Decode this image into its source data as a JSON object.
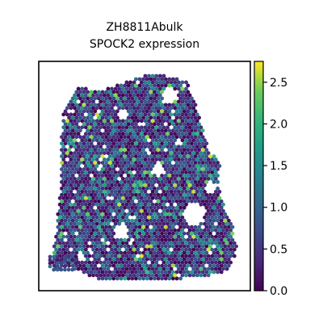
{
  "chart_data": {
    "type": "scatter",
    "title": "ZH8811Abulk",
    "subtitle": "SPOCK2 expression",
    "xlabel": "",
    "ylabel": "",
    "colormap": "viridis",
    "colorbar": {
      "min": 0.0,
      "max": 2.75,
      "ticks": [
        0.0,
        0.5,
        1.0,
        1.5,
        2.0,
        2.5
      ],
      "tick_labels": [
        "0.0",
        "0.5",
        "1.0",
        "1.5",
        "2.0",
        "2.5"
      ]
    },
    "axes_visible": false,
    "grid": false,
    "description_of_points": "Spatial transcriptomics spots; color encodes SPOCK2 expression (most spots near 0.0 to 1.0, scattered spots up to about 2.7)."
  },
  "colors": {
    "viridis_low": "#440154",
    "viridis_mid": "#21918c",
    "viridis_high": "#fde725",
    "frame": "#000000",
    "background": "#ffffff"
  }
}
